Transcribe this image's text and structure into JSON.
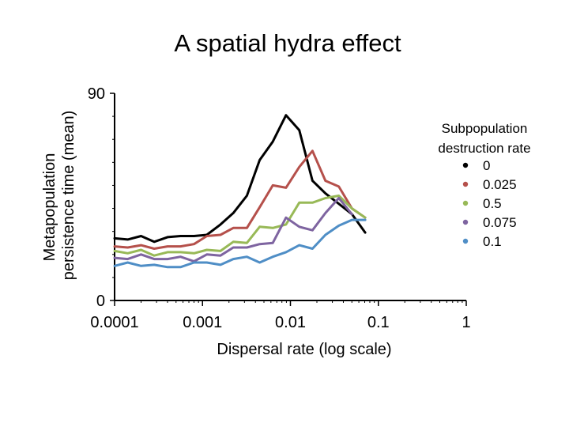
{
  "chart_data": {
    "type": "line",
    "title": "A spatial hydra effect",
    "xlabel": "Dispersal rate (log scale)",
    "ylabel_line1": "Metapopulation",
    "ylabel_line2": "persistence time (mean)",
    "xscale": "log",
    "xlim": [
      0.0001,
      1
    ],
    "ylim": [
      0,
      90
    ],
    "x_ticks": [
      {
        "value": 0.0001,
        "label": "0.0001"
      },
      {
        "value": 0.001,
        "label": "0.001"
      },
      {
        "value": 0.01,
        "label": "0.01"
      },
      {
        "value": 0.1,
        "label": "0.1"
      },
      {
        "value": 1,
        "label": "1"
      }
    ],
    "y_ticks": [
      {
        "value": 0,
        "label": "0"
      },
      {
        "value": 90,
        "label": "90"
      }
    ],
    "legend": {
      "title_line1": "Subpopulation",
      "title_line2": "destruction rate",
      "placement": "right"
    },
    "x": [
      0.0001,
      0.000141,
      0.0002,
      0.000282,
      0.0004,
      0.000562,
      0.0008,
      0.00112,
      0.0016,
      0.00224,
      0.0032,
      0.00447,
      0.0063,
      0.0089,
      0.0126,
      0.0178,
      0.025,
      0.0355,
      0.05,
      0.0708,
      0.1,
      0.141,
      0.2,
      0.282
    ],
    "series": [
      {
        "name": "0",
        "color": "#000000",
        "values": [
          27,
          26.5,
          28,
          25.5,
          27.5,
          28,
          28,
          28.5,
          33,
          38,
          45.5,
          61,
          69,
          80.5,
          74,
          52,
          46.5,
          42,
          37.5,
          29.5,
          null,
          null,
          null,
          null
        ]
      },
      {
        "name": "0.025",
        "color": "#b5504b",
        "values": [
          23.5,
          23,
          24,
          22.5,
          23.5,
          23.5,
          24.5,
          28,
          28.5,
          31.5,
          31.5,
          40.5,
          50,
          49,
          58,
          65,
          52,
          49.5,
          40,
          36,
          null,
          null,
          null,
          null
        ]
      },
      {
        "name": "0.5",
        "color": "#98b957",
        "values": [
          21.5,
          20.5,
          22,
          19.5,
          21,
          21,
          20.5,
          22,
          21.5,
          25.5,
          25,
          32,
          31.5,
          33,
          42.5,
          42.5,
          44.5,
          45.5,
          40,
          36,
          null,
          null,
          null,
          null
        ]
      },
      {
        "name": "0.075",
        "color": "#7e64a0",
        "values": [
          18.5,
          18,
          20,
          18,
          18,
          19,
          17,
          20,
          19.5,
          23,
          23,
          24.5,
          25,
          36,
          32,
          30.5,
          38,
          44.5,
          37.5,
          null,
          null,
          null,
          null,
          null
        ]
      },
      {
        "name": "0.1",
        "color": "#4f8ec6",
        "values": [
          15,
          16.5,
          15,
          15.5,
          14.5,
          14.5,
          16.5,
          16.5,
          15.5,
          18,
          19,
          16.5,
          19,
          21,
          24,
          22.5,
          28.5,
          32.5,
          35,
          35,
          null,
          null,
          null,
          null
        ]
      }
    ]
  }
}
